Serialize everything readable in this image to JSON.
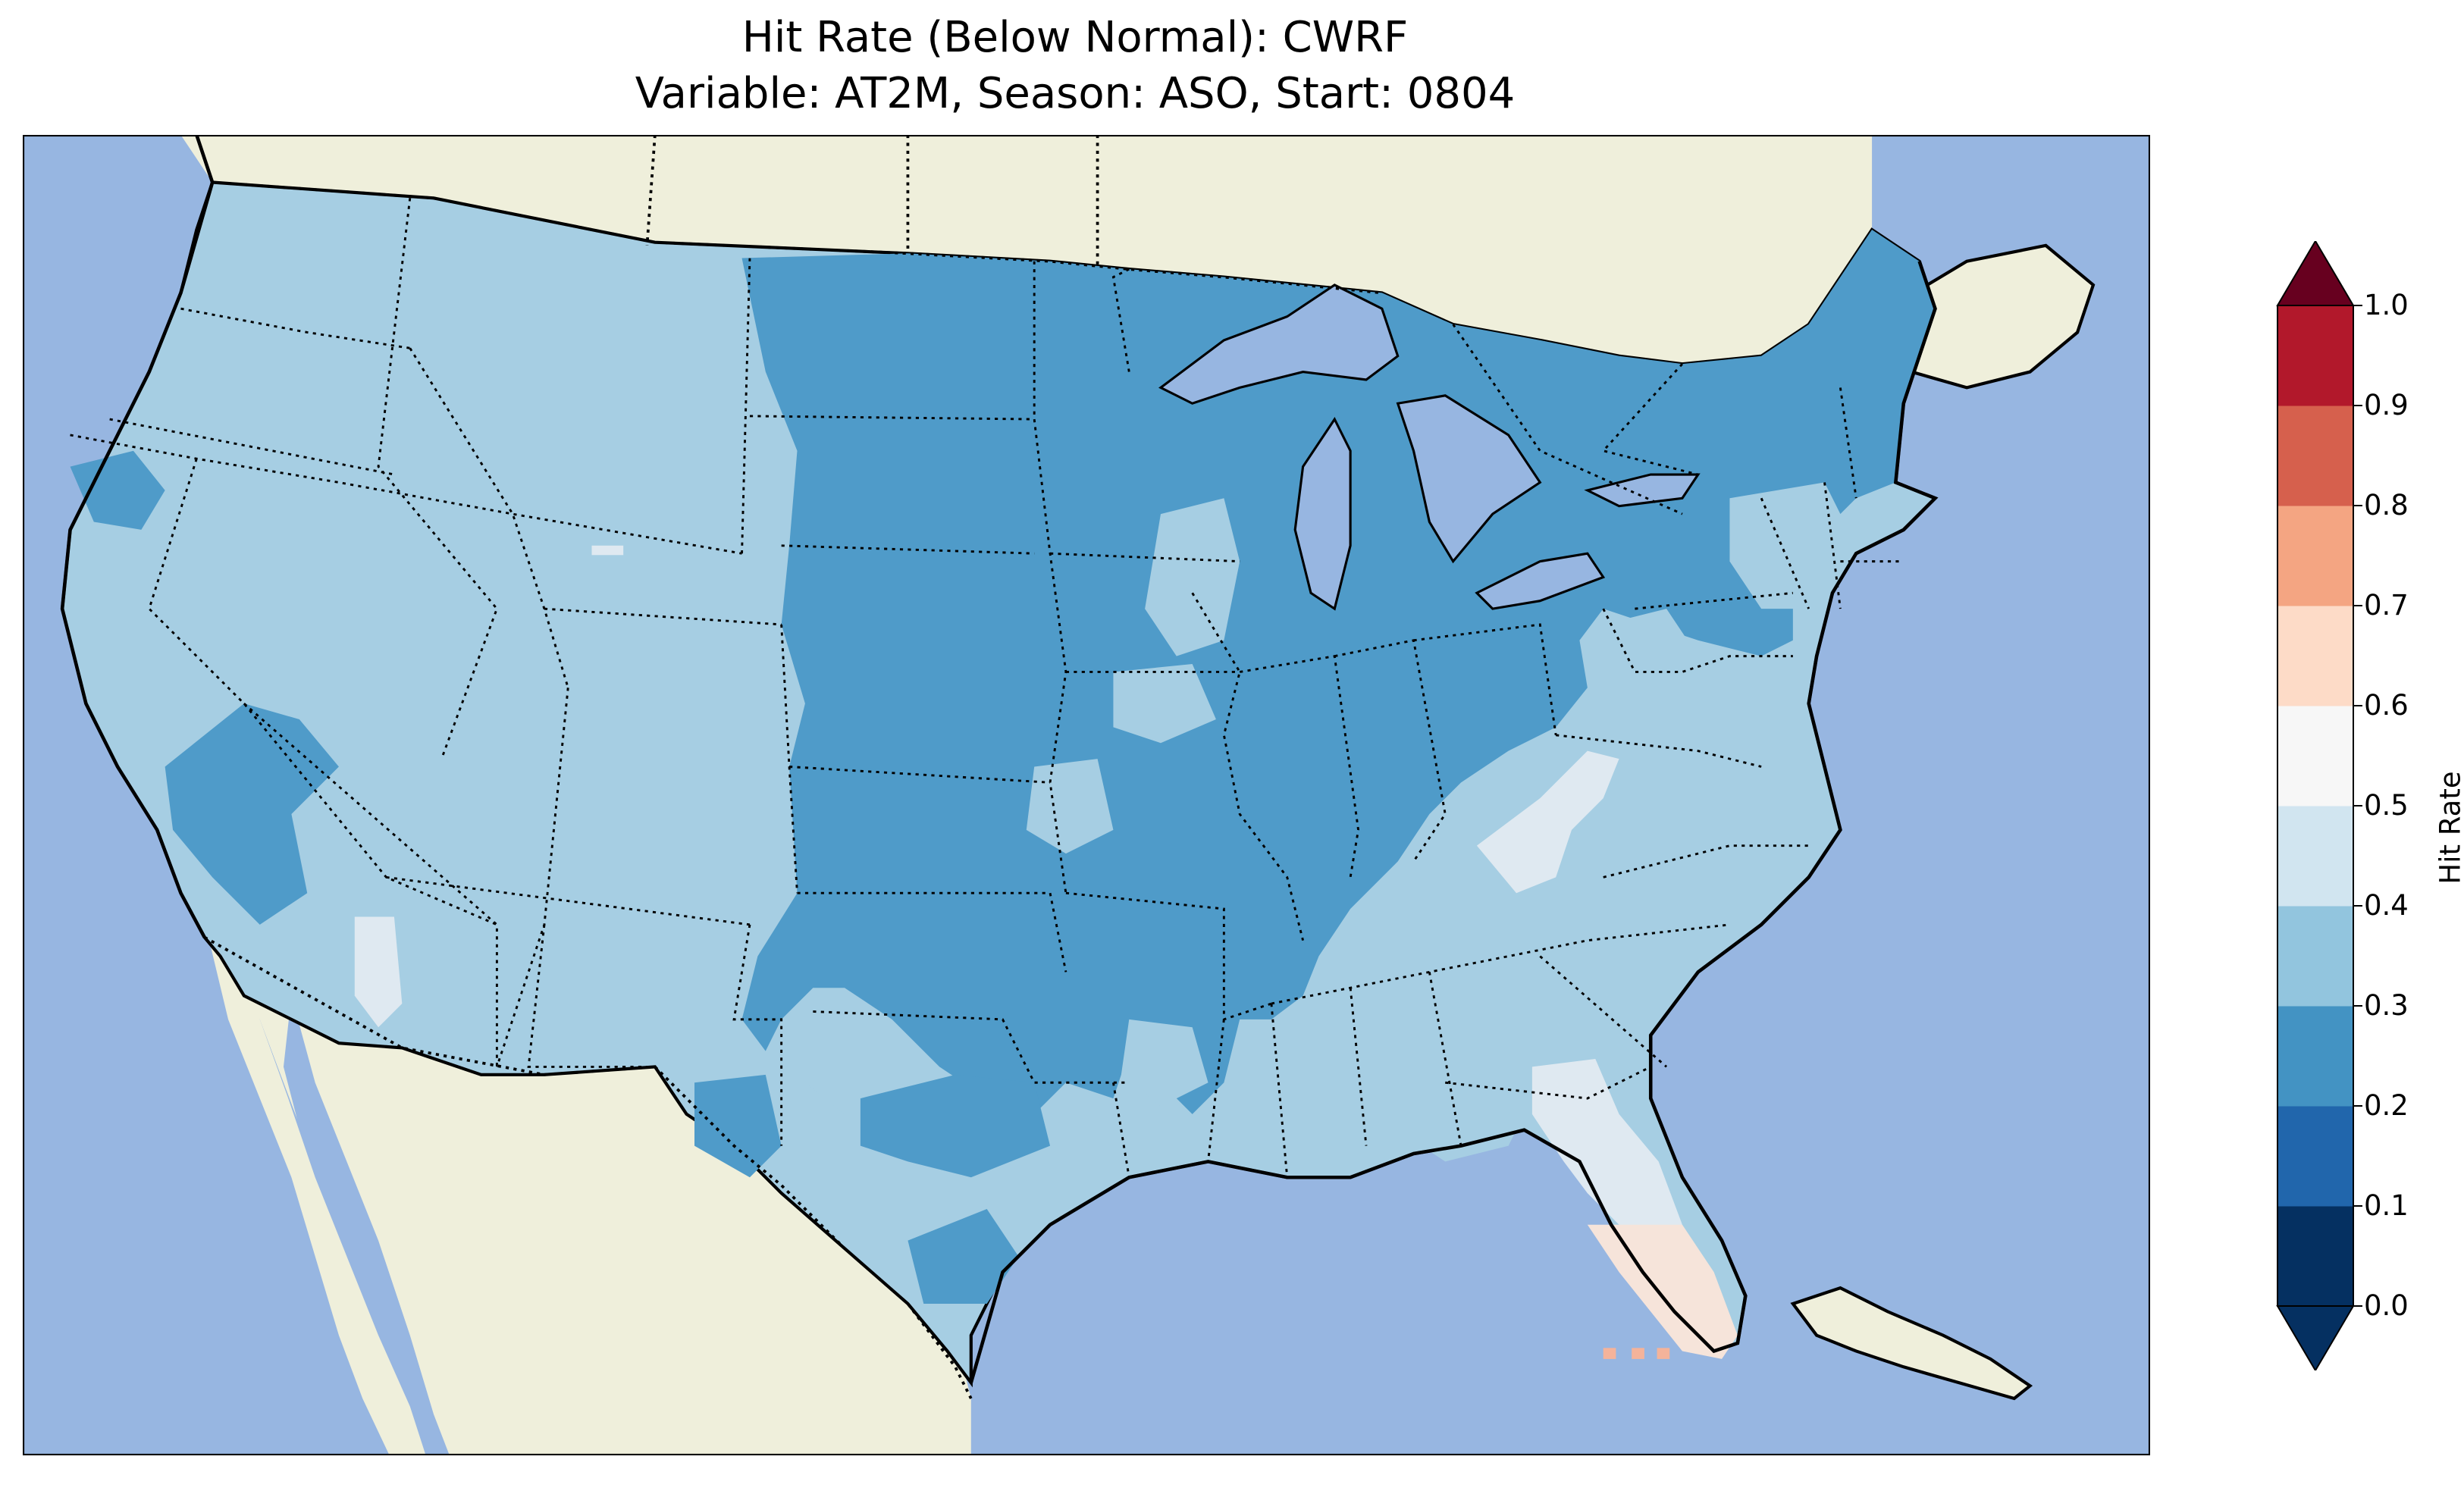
{
  "title_line1": "Hit Rate (Below Normal): CWRF",
  "title_line2": "Variable: AT2M, Season: ASO, Start: 0804",
  "colorbar": {
    "label": "Hit Rate",
    "ticks": [
      "0.0",
      "0.1",
      "0.2",
      "0.3",
      "0.4",
      "0.5",
      "0.6",
      "0.7",
      "0.8",
      "0.9",
      "1.0"
    ],
    "extend": "both",
    "colors": [
      "#053061",
      "#2166ac",
      "#4393c3",
      "#92c5de",
      "#d1e5f0",
      "#f7f7f7",
      "#fddbc7",
      "#f4a582",
      "#d6604d",
      "#b2182b",
      "#67001f"
    ],
    "under_color": "#053061",
    "over_color": "#67001f"
  },
  "map": {
    "region": "Contiguous United States",
    "ocean_color": "#97b6e1",
    "land_color": "#efefdb",
    "lake_color": "#97b6e1",
    "dominant_range": "0.3-0.4",
    "regions": [
      {
        "area": "West, Mountain West, Southern Plains, Gulf Coast, Southeast",
        "range": "0.3-0.4",
        "color": "#a6cee3"
      },
      {
        "area": "Northern & Central Plains, Midwest, Ohio Valley, Northeast, Maine",
        "range": "0.2-0.3",
        "color": "#4f9bc9"
      },
      {
        "area": "Appalachians (VA/NC/TN), North Florida, Arizona patch",
        "range": "0.4-0.5",
        "color": "#dfe9f1"
      },
      {
        "area": "South Florida peninsula",
        "range": "0.5-0.6",
        "color": "#f6e4da"
      },
      {
        "area": "Florida Keys",
        "range": "0.6-0.7",
        "color": "#f4b39a"
      }
    ]
  }
}
